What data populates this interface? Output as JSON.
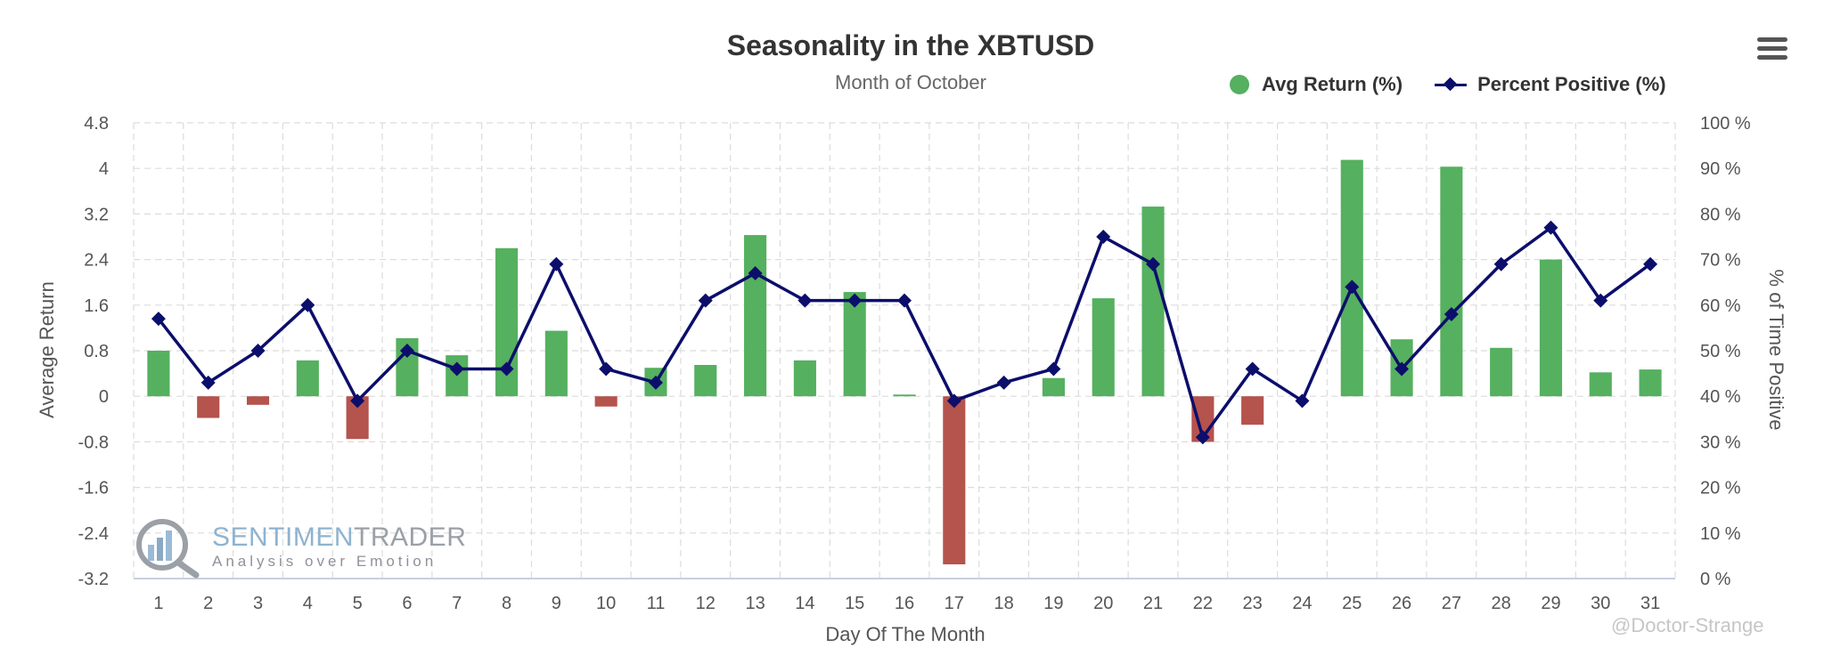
{
  "chart_data": {
    "type": "bar+line",
    "title": "Seasonality in the XBTUSD",
    "subtitle": "Month of October",
    "xlabel": "Day Of The Month",
    "ylabel_left": "Average Return",
    "ylabel_right": "% of Time Positive",
    "categories": [
      "1",
      "2",
      "3",
      "4",
      "5",
      "6",
      "7",
      "8",
      "9",
      "10",
      "11",
      "12",
      "13",
      "14",
      "15",
      "16",
      "17",
      "18",
      "19",
      "20",
      "21",
      "22",
      "23",
      "24",
      "25",
      "26",
      "27",
      "28",
      "29",
      "30",
      "31"
    ],
    "left_ticks": [
      "4.8",
      "4",
      "3.2",
      "2.4",
      "1.6",
      "0.8",
      "0",
      "-0.8",
      "-1.6",
      "-2.4",
      "-3.2"
    ],
    "right_ticks": [
      "100 %",
      "90 %",
      "80 %",
      "70 %",
      "60 %",
      "50 %",
      "40 %",
      "30 %",
      "20 %",
      "10 %",
      "0 %"
    ],
    "ylim_left": [
      -3.2,
      4.8
    ],
    "ylim_right": [
      0,
      100
    ],
    "grid": true,
    "legend_position": "top-right",
    "series": [
      {
        "name": "Avg Return (%)",
        "type": "bar",
        "axis": "left",
        "positive_color": "#55b05f",
        "negative_color": "#b5534d",
        "values": [
          0.8,
          -0.38,
          -0.15,
          0.63,
          -0.75,
          1.02,
          0.72,
          2.6,
          1.15,
          -0.18,
          0.5,
          0.55,
          2.83,
          0.63,
          1.83,
          0.03,
          -2.95,
          0,
          0.32,
          1.72,
          3.33,
          -0.8,
          -0.5,
          0,
          4.15,
          1.0,
          4.03,
          0.85,
          2.4,
          0.42,
          0.47
        ]
      },
      {
        "name": "Percent Positive (%)",
        "type": "line",
        "axis": "right",
        "color": "#0c0e6b",
        "values": [
          57,
          43,
          50,
          60,
          39,
          50,
          46,
          46,
          69,
          46,
          43,
          61,
          67,
          61,
          61,
          61,
          39,
          43,
          46,
          75,
          69,
          31,
          46,
          39,
          64,
          46,
          58,
          69,
          77,
          61,
          69
        ]
      }
    ]
  },
  "watermark": {
    "brand_part1": "SENTIMEN",
    "brand_part2": "TRADER",
    "tagline": "Analysis over Emotion"
  },
  "credit": "@Doctor-Strange",
  "menu": {
    "icon": "hamburger-menu-icon"
  }
}
